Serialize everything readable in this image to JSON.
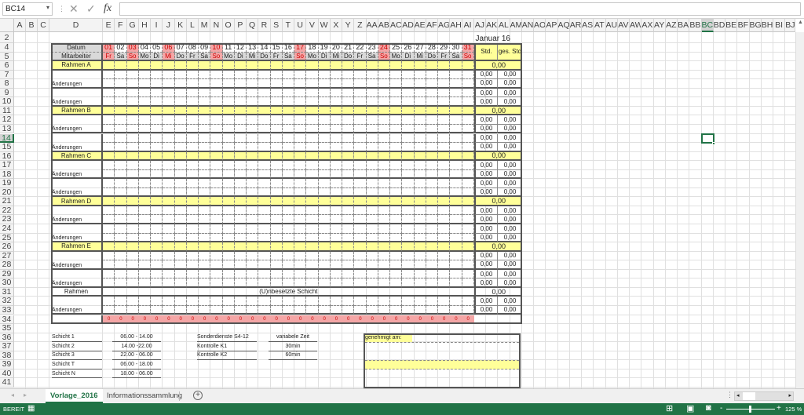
{
  "formula_bar": {
    "name_box": "BC14",
    "cancel_icon": "x-icon",
    "enter_icon": "check-icon",
    "function_label": "fx",
    "formula": ""
  },
  "columns": [
    "A",
    "B",
    "C",
    "D",
    "E",
    "F",
    "G",
    "H",
    "I",
    "J",
    "K",
    "L",
    "M",
    "N",
    "O",
    "P",
    "Q",
    "R",
    "S",
    "T",
    "U",
    "V",
    "W",
    "X",
    "Y",
    "Z",
    "AA",
    "AB",
    "AC",
    "AD",
    "AE",
    "AF",
    "AG",
    "AH",
    "AI",
    "AJ",
    "AK",
    "AL",
    "AM",
    "AN",
    "AO",
    "AP",
    "AQ",
    "AR",
    "AS",
    "AT",
    "AU",
    "AV",
    "AW",
    "AX",
    "AY",
    "AZ",
    "BA",
    "BB",
    "BC",
    "BD",
    "BE",
    "BF",
    "BG",
    "BH",
    "BI",
    "BJ"
  ],
  "rows": [
    "2",
    "4",
    "5",
    "6",
    "7",
    "8",
    "9",
    "10",
    "11",
    "12",
    "13",
    "14",
    "15",
    "16",
    "17",
    "18",
    "19",
    "20",
    "21",
    "22",
    "23",
    "24",
    "25",
    "26",
    "27",
    "28",
    "29",
    "30",
    "31",
    "32",
    "33",
    "34",
    "35",
    "36",
    "37",
    "38",
    "39",
    "40",
    "41"
  ],
  "selected_cell": {
    "column": "BC",
    "row": "14"
  },
  "month_title": "Januar 16",
  "table": {
    "date_label": "Datum",
    "employee_label": "Mitarbeiter",
    "std_label": "Std.",
    "ges_std_label": "ges. Std",
    "days": [
      "01",
      "02",
      "03",
      "04",
      "05",
      "06",
      "07",
      "08",
      "09",
      "10",
      "11",
      "12",
      "13",
      "14",
      "15",
      "16",
      "17",
      "18",
      "19",
      "20",
      "21",
      "22",
      "23",
      "24",
      "25",
      "26",
      "27",
      "28",
      "29",
      "30",
      "31"
    ],
    "weekdays": [
      "Fr",
      "Sa",
      "So",
      "Mo",
      "Di",
      "Mi",
      "Do",
      "Fr",
      "Sa",
      "So",
      "Mo",
      "Di",
      "Mi",
      "Do",
      "Fr",
      "Sa",
      "So",
      "Mo",
      "Di",
      "Mi",
      "Do",
      "Fr",
      "Sa",
      "So",
      "Mo",
      "Di",
      "Mi",
      "Do",
      "Fr",
      "Sa",
      "So"
    ],
    "highlighted_days": [
      "01",
      "03",
      "06",
      "10",
      "17",
      "24",
      "31"
    ],
    "groups": [
      {
        "label": "Rahmen A",
        "total": "0,00",
        "rows": [
          {
            "label": "",
            "std": "0,00",
            "ges": "0,00"
          },
          {
            "label": "Änderungen",
            "std": "0,00",
            "ges": "0,00"
          },
          {
            "label": "",
            "std": "0,00",
            "ges": "0,00"
          },
          {
            "label": "Änderungen",
            "std": "0,00",
            "ges": "0,00"
          }
        ]
      },
      {
        "label": "Rahmen B",
        "total": "0,00",
        "rows": [
          {
            "label": "",
            "std": "0,00",
            "ges": "0,00"
          },
          {
            "label": "Änderungen",
            "std": "0,00",
            "ges": "0,00"
          },
          {
            "label": "",
            "std": "0,00",
            "ges": "0,00"
          },
          {
            "label": "Änderungen",
            "std": "0,00",
            "ges": "0,00"
          }
        ]
      },
      {
        "label": "Rahmen C",
        "total": "0,00",
        "rows": [
          {
            "label": "",
            "std": "0,00",
            "ges": "0,00"
          },
          {
            "label": "Änderungen",
            "std": "0,00",
            "ges": "0,00"
          },
          {
            "label": "",
            "std": "0,00",
            "ges": "0,00"
          },
          {
            "label": "Änderungen",
            "std": "0,00",
            "ges": "0,00"
          }
        ]
      },
      {
        "label": "Rahmen D",
        "total": "0,00",
        "rows": [
          {
            "label": "",
            "std": "0,00",
            "ges": "0,00"
          },
          {
            "label": "Änderungen",
            "std": "0,00",
            "ges": "0,00"
          },
          {
            "label": "",
            "std": "0,00",
            "ges": "0,00"
          },
          {
            "label": "Änderungen",
            "std": "0,00",
            "ges": "0,00"
          }
        ]
      },
      {
        "label": "Rahmen E",
        "total": "0,00",
        "rows": [
          {
            "label": "",
            "std": "0,00",
            "ges": "0,00"
          },
          {
            "label": "Änderungen",
            "std": "0,00",
            "ges": "0,00"
          },
          {
            "label": "",
            "std": "0,00",
            "ges": "0,00"
          },
          {
            "label": "Änderungen",
            "std": "0,00",
            "ges": "0,00"
          }
        ]
      }
    ],
    "unassigned": {
      "label": "Rahmen",
      "text": "(U)nbesetzte Schicht",
      "total": "0,00",
      "rows": [
        {
          "label": "",
          "std": "0,00",
          "ges": "0,00"
        },
        {
          "label": "Änderungen",
          "std": "0,00",
          "ges": "0,00"
        }
      ]
    },
    "day_totals": [
      "0",
      "0",
      "0",
      "0",
      "0",
      "0",
      "0",
      "0",
      "0",
      "0",
      "0",
      "0",
      "0",
      "0",
      "0",
      "0",
      "0",
      "0",
      "0",
      "0",
      "0",
      "0",
      "0",
      "0",
      "0",
      "0",
      "0",
      "0",
      "0",
      "0",
      "0"
    ]
  },
  "shifts": [
    {
      "name": "Schicht  1",
      "time": "06.00 - 14.00"
    },
    {
      "name": "Schicht  2",
      "time": "14.00 -22.00"
    },
    {
      "name": "Schicht  3",
      "time": "22.00 - 06.00"
    },
    {
      "name": "Schicht  T",
      "time": "06.00 - 18.00"
    },
    {
      "name": "Schicht  N",
      "time": "18.00 - 06.00"
    }
  ],
  "special": [
    {
      "name": "Sonderdienste S4-12",
      "time": "variabele Zeit"
    },
    {
      "name": "Kontrolle  K1",
      "time": "30min"
    },
    {
      "name": "Kontrolle  K2",
      "time": "60min"
    }
  ],
  "approval": {
    "label": "genehmigt am:"
  },
  "sheet_tabs": [
    {
      "label": "Vorlage_2016",
      "active": true
    },
    {
      "label": "Informationssammlung",
      "active": false
    }
  ],
  "status": {
    "ready": "BEREIT",
    "zoom": "125 %"
  },
  "colors": {
    "accent": "#217346",
    "header_yellow": "#ffff99",
    "holiday_pink": "#f4a6a6"
  }
}
